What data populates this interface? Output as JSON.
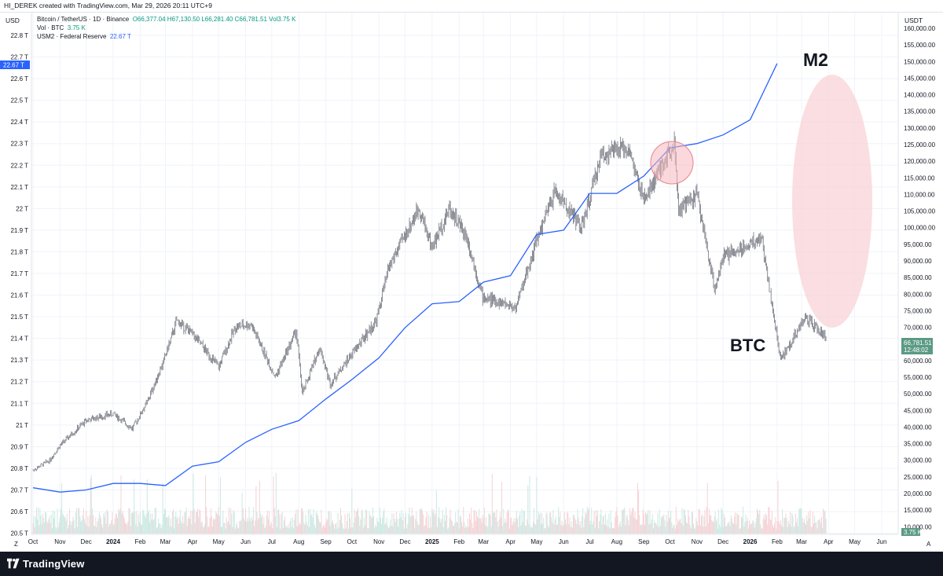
{
  "header": {
    "caption": "HI_DEREK created with TradingView.com, Mar 29, 2026 20:11 UTC+9"
  },
  "legend": {
    "main": "Bitcoin / TetherUS · 1D · Binance",
    "ohlc": "O66,377.04  H67,130.50  L66,281.40  C66,781.51  Vol3.75 K",
    "vol_label": "Vol · BTC",
    "vol_value": "3.75 K",
    "m2_label": "USM2 · Federal Reserve",
    "m2_value": "22.67 T"
  },
  "axes": {
    "left_unit": "USD",
    "right_unit": "USDT",
    "z_button": "Z",
    "a_button": "A"
  },
  "badges": {
    "m2_value": "22.67 T",
    "btc_price": "66,781.51",
    "btc_countdown": "12:48:02",
    "vol_value": "3.75 K"
  },
  "colors": {
    "m2_line": "#2962ff",
    "candle": "#5d606b",
    "highlight": "#f7b5bb",
    "price_badge": "#5b9a84",
    "volume": "#f4c7cc"
  },
  "footer": {
    "brand": "TradingView",
    "logo": "tradingview-logo-icon"
  },
  "chart_data": {
    "type": "line",
    "annotations": [
      "M2",
      "BTC"
    ],
    "x_ticks": [
      "Oct",
      "Nov",
      "Dec",
      "2024",
      "Feb",
      "Mar",
      "Apr",
      "May",
      "Jun",
      "Jul",
      "Aug",
      "Sep",
      "Oct",
      "Nov",
      "Dec",
      "2025",
      "Feb",
      "Mar",
      "Apr",
      "May",
      "Jun",
      "Jul",
      "Aug",
      "Sep",
      "Oct",
      "Nov",
      "Dec",
      "2026",
      "Feb",
      "Mar",
      "Apr",
      "May",
      "Jun"
    ],
    "left_axis": {
      "unit": "USD",
      "ticks": [
        "22.8 T",
        "22.7 T",
        "22.6 T",
        "22.5 T",
        "22.4 T",
        "22.3 T",
        "22.2 T",
        "22.1 T",
        "22 T",
        "21.9 T",
        "21.8 T",
        "21.7 T",
        "21.6 T",
        "21.5 T",
        "21.4 T",
        "21.3 T",
        "21.2 T",
        "21.1 T",
        "21 T",
        "20.9 T",
        "20.8 T",
        "20.7 T",
        "20.6 T",
        "20.5 T"
      ],
      "range": [
        20.5,
        22.8
      ]
    },
    "right_axis": {
      "unit": "USDT",
      "ticks": [
        "160,000.00",
        "155,000.00",
        "150,000.00",
        "145,000.00",
        "140,000.00",
        "135,000.00",
        "130,000.00",
        "125,000.00",
        "120,000.00",
        "115,000.00",
        "110,000.00",
        "105,000.00",
        "100,000.00",
        "95,000.00",
        "90,000.00",
        "85,000.00",
        "80,000.00",
        "75,000.00",
        "70,000.00",
        "65,000.00",
        "60,000.00",
        "55,000.00",
        "50,000.00",
        "45,000.00",
        "40,000.00",
        "35,000.00",
        "30,000.00",
        "25,000.00",
        "20,000.00",
        "15,000.00",
        "10,000.00"
      ],
      "range": [
        10000,
        160000
      ]
    },
    "series": [
      {
        "name": "USM2 · Federal Reserve",
        "axis": "left",
        "points": [
          {
            "x": "2023-10-01",
            "y": 20.71
          },
          {
            "x": "2023-11-01",
            "y": 20.69
          },
          {
            "x": "2023-12-01",
            "y": 20.7
          },
          {
            "x": "2024-01-01",
            "y": 20.73
          },
          {
            "x": "2024-02-01",
            "y": 20.73
          },
          {
            "x": "2024-03-01",
            "y": 20.72
          },
          {
            "x": "2024-04-01",
            "y": 20.81
          },
          {
            "x": "2024-05-01",
            "y": 20.83
          },
          {
            "x": "2024-06-01",
            "y": 20.92
          },
          {
            "x": "2024-07-01",
            "y": 20.98
          },
          {
            "x": "2024-08-01",
            "y": 21.02
          },
          {
            "x": "2024-09-01",
            "y": 21.12
          },
          {
            "x": "2024-10-01",
            "y": 21.21
          },
          {
            "x": "2024-11-01",
            "y": 21.31
          },
          {
            "x": "2024-12-01",
            "y": 21.45
          },
          {
            "x": "2025-01-01",
            "y": 21.56
          },
          {
            "x": "2025-02-01",
            "y": 21.57
          },
          {
            "x": "2025-03-01",
            "y": 21.66
          },
          {
            "x": "2025-04-01",
            "y": 21.69
          },
          {
            "x": "2025-05-01",
            "y": 21.88
          },
          {
            "x": "2025-06-01",
            "y": 21.9
          },
          {
            "x": "2025-07-01",
            "y": 22.07
          },
          {
            "x": "2025-08-01",
            "y": 22.07
          },
          {
            "x": "2025-09-01",
            "y": 22.15
          },
          {
            "x": "2025-10-01",
            "y": 22.28
          },
          {
            "x": "2025-11-01",
            "y": 22.3
          },
          {
            "x": "2025-12-01",
            "y": 22.34
          },
          {
            "x": "2026-01-01",
            "y": 22.41
          },
          {
            "x": "2026-02-01",
            "y": 22.67
          }
        ]
      },
      {
        "name": "Bitcoin / TetherUS",
        "axis": "right",
        "points": [
          {
            "x": "2023-10-01",
            "y": 27000
          },
          {
            "x": "2023-10-20",
            "y": 30000
          },
          {
            "x": "2023-11-01",
            "y": 34500
          },
          {
            "x": "2023-12-01",
            "y": 42000
          },
          {
            "x": "2024-01-01",
            "y": 44000
          },
          {
            "x": "2024-01-23",
            "y": 39500
          },
          {
            "x": "2024-02-10",
            "y": 48000
          },
          {
            "x": "2024-02-28",
            "y": 60000
          },
          {
            "x": "2024-03-14",
            "y": 72000
          },
          {
            "x": "2024-04-01",
            "y": 68000
          },
          {
            "x": "2024-05-01",
            "y": 58000
          },
          {
            "x": "2024-05-20",
            "y": 70000
          },
          {
            "x": "2024-06-07",
            "y": 71000
          },
          {
            "x": "2024-07-05",
            "y": 55000
          },
          {
            "x": "2024-07-29",
            "y": 69000
          },
          {
            "x": "2024-08-05",
            "y": 50000
          },
          {
            "x": "2024-08-25",
            "y": 64000
          },
          {
            "x": "2024-09-06",
            "y": 53000
          },
          {
            "x": "2024-10-01",
            "y": 62000
          },
          {
            "x": "2024-10-29",
            "y": 72000
          },
          {
            "x": "2024-11-12",
            "y": 88000
          },
          {
            "x": "2024-12-17",
            "y": 106000
          },
          {
            "x": "2025-01-01",
            "y": 94000
          },
          {
            "x": "2025-01-21",
            "y": 106000
          },
          {
            "x": "2025-02-10",
            "y": 97000
          },
          {
            "x": "2025-02-28",
            "y": 79000
          },
          {
            "x": "2025-04-07",
            "y": 76000
          },
          {
            "x": "2025-05-01",
            "y": 96000
          },
          {
            "x": "2025-05-22",
            "y": 111000
          },
          {
            "x": "2025-06-22",
            "y": 100000
          },
          {
            "x": "2025-07-14",
            "y": 122000
          },
          {
            "x": "2025-08-14",
            "y": 124000
          },
          {
            "x": "2025-09-01",
            "y": 108000
          },
          {
            "x": "2025-10-06",
            "y": 126000
          },
          {
            "x": "2025-10-11",
            "y": 105000
          },
          {
            "x": "2025-11-01",
            "y": 110000
          },
          {
            "x": "2025-11-21",
            "y": 82000
          },
          {
            "x": "2025-12-01",
            "y": 91000
          },
          {
            "x": "2026-01-14",
            "y": 97000
          },
          {
            "x": "2026-02-05",
            "y": 60000
          },
          {
            "x": "2026-03-05",
            "y": 73000
          },
          {
            "x": "2026-03-29",
            "y": 66781.51
          }
        ]
      }
    ]
  }
}
